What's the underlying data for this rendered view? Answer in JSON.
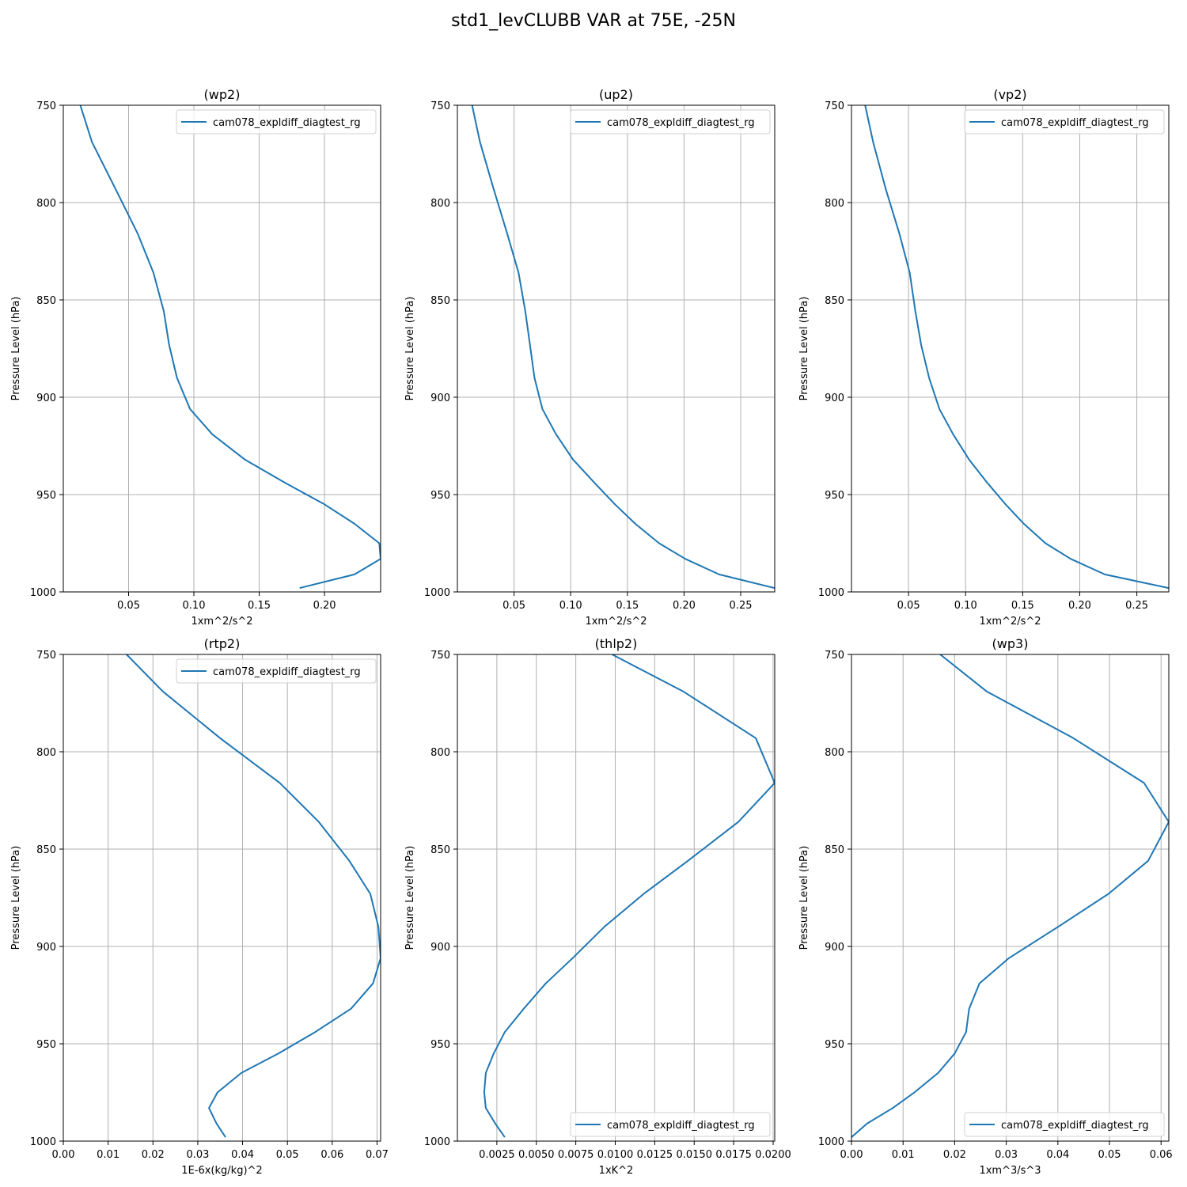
{
  "figure": {
    "title": "std1_levCLUBB VAR at 75E, -25N",
    "line_color": "#1f77b4",
    "grid_color": "#b0b0b0"
  },
  "chart_data": [
    {
      "type": "line",
      "title": "(wp2)",
      "xlabel": "1xm^2/s^2",
      "ylabel": "Pressure Level (hPa)",
      "xlim": [
        0.0,
        0.243
      ],
      "ylim": [
        1000,
        750
      ],
      "xticks": [
        0.05,
        0.1,
        0.15,
        0.2
      ],
      "xtick_labels": [
        "0.05",
        "0.10",
        "0.15",
        "0.20"
      ],
      "yticks": [
        750,
        800,
        850,
        900,
        950,
        1000
      ],
      "ytick_labels": [
        "750",
        "800",
        "850",
        "900",
        "950",
        "1000"
      ],
      "grid": true,
      "legend_position": "top-right",
      "series": [
        {
          "name": "cam078_expldiff_diagtest_rg",
          "x": [
            0.013,
            0.022,
            0.04,
            0.057,
            0.069,
            0.077,
            0.081,
            0.087,
            0.097,
            0.114,
            0.139,
            0.17,
            0.2,
            0.223,
            0.242,
            0.243,
            0.223,
            0.181
          ],
          "y": [
            750,
            769,
            793,
            816,
            836,
            856,
            873,
            890,
            906,
            919,
            932,
            944,
            955,
            965,
            975,
            983,
            991,
            998
          ]
        }
      ]
    },
    {
      "type": "line",
      "title": "(up2)",
      "xlabel": "1xm^2/s^2",
      "ylabel": "Pressure Level (hPa)",
      "xlim": [
        0.0,
        0.28
      ],
      "ylim": [
        1000,
        750
      ],
      "xticks": [
        0.05,
        0.1,
        0.15,
        0.2,
        0.25
      ],
      "xtick_labels": [
        "0.05",
        "0.10",
        "0.15",
        "0.20",
        "0.25"
      ],
      "yticks": [
        750,
        800,
        850,
        900,
        950,
        1000
      ],
      "ytick_labels": [
        "750",
        "800",
        "850",
        "900",
        "950",
        "1000"
      ],
      "grid": true,
      "legend_position": "top-right",
      "series": [
        {
          "name": "cam078_expldiff_diagtest_rg",
          "x": [
            0.013,
            0.02,
            0.032,
            0.044,
            0.054,
            0.06,
            0.064,
            0.068,
            0.075,
            0.087,
            0.102,
            0.121,
            0.139,
            0.157,
            0.178,
            0.201,
            0.231,
            0.28
          ],
          "y": [
            750,
            769,
            793,
            816,
            836,
            856,
            873,
            890,
            906,
            919,
            932,
            944,
            955,
            965,
            975,
            983,
            991,
            998
          ]
        }
      ]
    },
    {
      "type": "line",
      "title": "(vp2)",
      "xlabel": "1xm^2/s^2",
      "ylabel": "Pressure Level (hPa)",
      "xlim": [
        0.0,
        0.278
      ],
      "ylim": [
        1000,
        750
      ],
      "xticks": [
        0.05,
        0.1,
        0.15,
        0.2,
        0.25
      ],
      "xtick_labels": [
        "0.05",
        "0.10",
        "0.15",
        "0.20",
        "0.25"
      ],
      "yticks": [
        750,
        800,
        850,
        900,
        950,
        1000
      ],
      "ytick_labels": [
        "750",
        "800",
        "850",
        "900",
        "950",
        "1000"
      ],
      "grid": true,
      "legend_position": "top-right",
      "series": [
        {
          "name": "cam078_expldiff_diagtest_rg",
          "x": [
            0.012,
            0.019,
            0.03,
            0.042,
            0.051,
            0.056,
            0.061,
            0.068,
            0.077,
            0.089,
            0.103,
            0.119,
            0.135,
            0.151,
            0.17,
            0.192,
            0.222,
            0.278
          ],
          "y": [
            750,
            769,
            793,
            816,
            836,
            856,
            873,
            890,
            906,
            919,
            932,
            944,
            955,
            965,
            975,
            983,
            991,
            998
          ]
        }
      ]
    },
    {
      "type": "line",
      "title": "(rtp2)",
      "xlabel": "1E-6x(kg/kg)^2",
      "ylabel": "Pressure Level (hPa)",
      "xlim": [
        0.0,
        0.0708
      ],
      "ylim": [
        1000,
        750
      ],
      "xticks": [
        0.0,
        0.01,
        0.02,
        0.03,
        0.04,
        0.05,
        0.06,
        0.07
      ],
      "xtick_labels": [
        "0.00",
        "0.01",
        "0.02",
        "0.03",
        "0.04",
        "0.05",
        "0.06",
        "0.07"
      ],
      "yticks": [
        750,
        800,
        850,
        900,
        950,
        1000
      ],
      "ytick_labels": [
        "750",
        "800",
        "850",
        "900",
        "950",
        "1000"
      ],
      "grid": true,
      "legend_position": "top-right",
      "series": [
        {
          "name": "cam078_expldiff_diagtest_rg",
          "x": [
            0.0141,
            0.0222,
            0.035,
            0.0483,
            0.057,
            0.0638,
            0.0685,
            0.0703,
            0.0708,
            0.0691,
            0.0642,
            0.0562,
            0.048,
            0.0397,
            0.0344,
            0.0325,
            0.0342,
            0.0362
          ],
          "y": [
            750,
            769,
            793,
            816,
            836,
            856,
            873,
            890,
            906,
            919,
            932,
            944,
            955,
            965,
            975,
            983,
            991,
            998
          ]
        }
      ]
    },
    {
      "type": "line",
      "title": "(thlp2)",
      "xlabel": "1xK^2",
      "ylabel": "Pressure Level (hPa)",
      "xlim": [
        0.0,
        0.0201
      ],
      "ylim": [
        1000,
        750
      ],
      "xticks": [
        0.0025,
        0.005,
        0.0075,
        0.01,
        0.0125,
        0.015,
        0.0175,
        0.02
      ],
      "xtick_labels": [
        "0.0025",
        "0.0050",
        "0.0075",
        "0.0100",
        "0.0125",
        "0.0150",
        "0.0175",
        "0.0200"
      ],
      "yticks": [
        750,
        800,
        850,
        900,
        950,
        1000
      ],
      "ytick_labels": [
        "750",
        "800",
        "850",
        "900",
        "950",
        "1000"
      ],
      "grid": true,
      "legend_position": "lower-right",
      "series": [
        {
          "name": "cam078_expldiff_diagtest_rg",
          "x": [
            0.0098,
            0.0143,
            0.0189,
            0.0201,
            0.0178,
            0.0146,
            0.0118,
            0.0093,
            0.0073,
            0.0056,
            0.0042,
            0.003,
            0.0023,
            0.0018,
            0.0017,
            0.0018,
            0.0024,
            0.003
          ],
          "y": [
            750,
            769,
            793,
            816,
            836,
            856,
            873,
            890,
            906,
            919,
            932,
            944,
            955,
            965,
            975,
            983,
            991,
            998
          ]
        }
      ]
    },
    {
      "type": "line",
      "title": "(wp3)",
      "xlabel": "1xm^3/s^3",
      "ylabel": "Pressure Level (hPa)",
      "xlim": [
        0.0,
        0.0615
      ],
      "ylim": [
        1000,
        750
      ],
      "xticks": [
        0.0,
        0.01,
        0.02,
        0.03,
        0.04,
        0.05,
        0.06
      ],
      "xtick_labels": [
        "0.00",
        "0.01",
        "0.02",
        "0.03",
        "0.04",
        "0.05",
        "0.06"
      ],
      "yticks": [
        750,
        800,
        850,
        900,
        950,
        1000
      ],
      "ytick_labels": [
        "750",
        "800",
        "850",
        "900",
        "950",
        "1000"
      ],
      "grid": true,
      "legend_position": "lower-right",
      "series": [
        {
          "name": "cam078_expldiff_diagtest_rg",
          "x": [
            0.0172,
            0.0262,
            0.043,
            0.0567,
            0.0615,
            0.0575,
            0.0498,
            0.04,
            0.0305,
            0.0248,
            0.0228,
            0.0222,
            0.02,
            0.0168,
            0.0122,
            0.008,
            0.003,
            0.0
          ],
          "y": [
            750,
            769,
            793,
            816,
            836,
            856,
            873,
            890,
            906,
            919,
            932,
            944,
            955,
            965,
            975,
            983,
            991,
            998
          ]
        }
      ]
    }
  ]
}
